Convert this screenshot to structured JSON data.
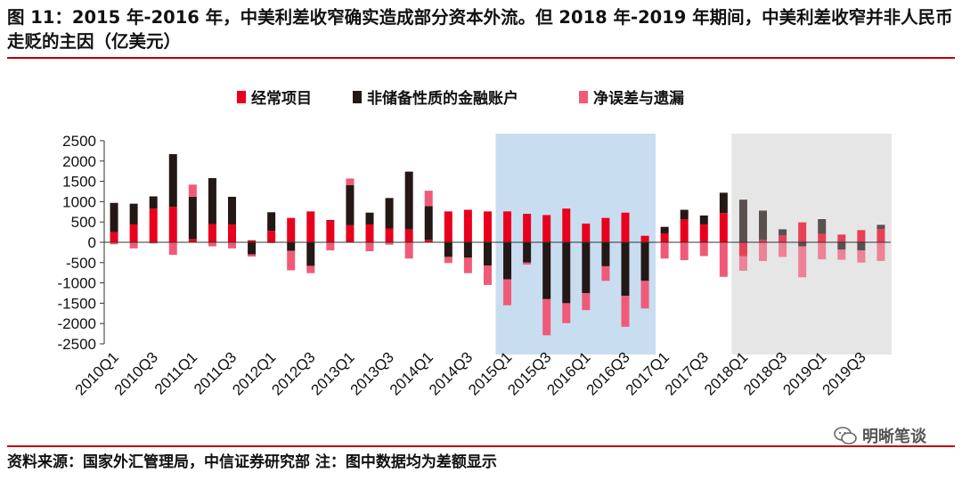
{
  "title": "图 11：2015 年-2016 年，中美利差收窄确实造成部分资本外流。但 2018 年-2019 年期间，中美利差收窄并非人民币走贬的主因（亿美元）",
  "source": "资料来源：国家外汇管理局，中信证券研究部 注：图中数据均为差额显示",
  "watermark": "明晰笔谈",
  "colors": {
    "current_account": "#e8001c",
    "financial_account": "#231815",
    "errors_omissions": "#f05a78",
    "highlight_2015_2016": "#c9ddf0",
    "highlight_2018_2019": "#e6e6e6",
    "rule": "#c00000"
  },
  "chart_data": {
    "type": "bar",
    "stacked": true,
    "categories": [
      "2010Q1",
      "2010Q2",
      "2010Q3",
      "2010Q4",
      "2011Q1",
      "2011Q2",
      "2011Q3",
      "2011Q4",
      "2012Q1",
      "2012Q2",
      "2012Q3",
      "2012Q4",
      "2013Q1",
      "2013Q2",
      "2013Q3",
      "2013Q4",
      "2014Q1",
      "2014Q2",
      "2014Q3",
      "2014Q4",
      "2015Q1",
      "2015Q2",
      "2015Q3",
      "2015Q4",
      "2016Q1",
      "2016Q2",
      "2016Q3",
      "2016Q4",
      "2017Q1",
      "2017Q2",
      "2017Q3",
      "2017Q4",
      "2018Q1",
      "2018Q2",
      "2018Q3",
      "2018Q4",
      "2019Q1",
      "2019Q2",
      "2019Q3",
      "2019Q4"
    ],
    "x_tick_labels": [
      "2010Q1",
      "2010Q3",
      "2011Q1",
      "2011Q3",
      "2012Q1",
      "2012Q3",
      "2013Q1",
      "2013Q3",
      "2014Q1",
      "2014Q3",
      "2015Q1",
      "2015Q3",
      "2016Q1",
      "2016Q3",
      "2017Q1",
      "2017Q3",
      "2018Q1",
      "2018Q3",
      "2019Q1",
      "2019Q3"
    ],
    "series": [
      {
        "name": "经常项目",
        "color": "#e8001c",
        "values": [
          250,
          440,
          830,
          870,
          80,
          450,
          440,
          50,
          280,
          600,
          760,
          540,
          420,
          440,
          340,
          320,
          60,
          760,
          800,
          760,
          760,
          700,
          670,
          830,
          460,
          600,
          730,
          160,
          220,
          570,
          440,
          720,
          -340,
          60,
          170,
          490,
          210,
          190,
          300,
          330
        ]
      },
      {
        "name": "非储备性质的金融账户",
        "color": "#231815",
        "values": [
          720,
          510,
          300,
          1300,
          1040,
          1130,
          680,
          -300,
          460,
          -210,
          -580,
          10,
          990,
          290,
          750,
          1420,
          830,
          -360,
          -380,
          -570,
          -910,
          -500,
          -1400,
          -1500,
          -1250,
          -590,
          -1320,
          -950,
          160,
          230,
          220,
          500,
          1050,
          720,
          150,
          -100,
          360,
          -180,
          -200,
          100
        ]
      },
      {
        "name": "净误差与遗漏",
        "color": "#f05a78",
        "values": [
          -50,
          -150,
          -30,
          -310,
          300,
          -100,
          -150,
          -50,
          -20,
          -480,
          -180,
          -200,
          160,
          -220,
          -60,
          -400,
          380,
          -150,
          -380,
          -480,
          -640,
          -50,
          -890,
          -490,
          -420,
          -360,
          -760,
          -680,
          -400,
          -440,
          -340,
          -850,
          -360,
          -460,
          -360,
          -760,
          -420,
          -250,
          -300,
          -460
        ]
      }
    ],
    "highlight_ranges": [
      {
        "from": "2015Q1",
        "to": "2016Q4"
      },
      {
        "from": "2018Q1",
        "to": "2019Q4"
      }
    ],
    "yticks": [
      2500,
      2000,
      1500,
      1000,
      500,
      0,
      -500,
      -1000,
      -1500,
      -2000,
      -2500
    ],
    "ylim": [
      -2500,
      2500
    ],
    "legend_position": "top-center",
    "xlabel": "",
    "ylabel": ""
  }
}
